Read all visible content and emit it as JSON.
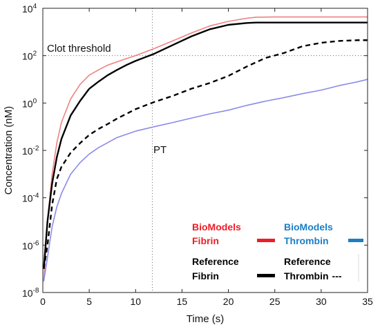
{
  "chart_data": {
    "type": "line",
    "xlabel": "Time (s)",
    "ylabel": "Concentration (nM)",
    "xlim": [
      0,
      35
    ],
    "ylim": [
      1e-08,
      10000.0
    ],
    "yscale": "log",
    "grid": false,
    "x_ticks": [
      "0",
      "5",
      "10",
      "15",
      "20",
      "25",
      "30",
      "35"
    ],
    "x_tick_values": [
      0,
      5,
      10,
      15,
      20,
      25,
      30,
      35
    ],
    "y_ticks": [
      {
        "base": "10",
        "exp": "4",
        "value": 10000
      },
      {
        "base": "10",
        "exp": "2",
        "value": 100
      },
      {
        "base": "10",
        "exp": "0",
        "value": 1
      },
      {
        "base": "10",
        "exp": "-2",
        "value": 0.01
      },
      {
        "base": "10",
        "exp": "-4",
        "value": 0.0001
      },
      {
        "base": "10",
        "exp": "-6",
        "value": 1e-06
      },
      {
        "base": "10",
        "exp": "-8",
        "value": 1e-08
      }
    ],
    "annotations": {
      "clot_threshold": {
        "text": "Clot threshold",
        "y": 100
      },
      "pt": {
        "text": "PT",
        "x": 11.8
      }
    },
    "legend": {
      "placement": "bottom-right",
      "entries": [
        {
          "line1": "BioModels",
          "line2": "Fibrin",
          "color": "#ee1c25",
          "style": "solid-red"
        },
        {
          "line1": "BioModels",
          "line2": "Thrombin",
          "color": "#1a7fc4",
          "style": "solid-blue"
        },
        {
          "line1": "Reference",
          "line2": "Fibrin",
          "color": "#000000",
          "style": "solid-black"
        },
        {
          "line1": "Reference",
          "line2": "Thrombin",
          "suffix": "---",
          "color": "#000000",
          "style": "dashed-black"
        }
      ]
    },
    "series": [
      {
        "key": "biomodels_fibrin",
        "color": "#f08080",
        "dash": "none",
        "x": [
          0.1,
          0.5,
          1,
          1.5,
          2,
          3,
          4,
          5,
          6,
          7,
          8,
          9,
          10,
          12,
          14,
          16,
          18,
          20,
          22,
          23,
          25,
          30,
          35
        ],
        "y": [
          3e-08,
          1e-05,
          0.001,
          0.02,
          0.15,
          1.5,
          6,
          15,
          25,
          40,
          55,
          75,
          100,
          200,
          420,
          900,
          1800,
          2800,
          3800,
          4200,
          4300,
          4300,
          4300
        ]
      },
      {
        "key": "reference_fibrin",
        "color": "#000000",
        "dash": "none",
        "x": [
          0.1,
          0.5,
          1,
          1.5,
          2,
          3,
          4,
          5,
          6,
          7,
          8,
          9,
          10,
          12,
          14,
          16,
          18,
          20,
          22,
          23,
          25,
          30,
          35
        ],
        "y": [
          1e-07,
          1e-05,
          0.0004,
          0.005,
          0.03,
          0.3,
          1.2,
          4,
          8,
          15,
          25,
          40,
          60,
          120,
          280,
          650,
          1300,
          2000,
          2400,
          2500,
          2500,
          2500,
          2500
        ]
      },
      {
        "key": "reference_thrombin",
        "color": "#000000",
        "dash": "7,5",
        "x": [
          0.1,
          0.5,
          1,
          1.5,
          2,
          3,
          4,
          5,
          6,
          7,
          8,
          10,
          12,
          14,
          16,
          18,
          20,
          22,
          24,
          26,
          28,
          30,
          32,
          34,
          35
        ],
        "y": [
          1e-07,
          1e-06,
          5e-05,
          0.0006,
          0.002,
          0.008,
          0.02,
          0.045,
          0.08,
          0.13,
          0.22,
          0.55,
          1.1,
          2,
          4,
          7,
          14,
          35,
          80,
          130,
          250,
          350,
          420,
          450,
          450
        ]
      },
      {
        "key": "biomodels_thrombin",
        "color": "#8a8aea",
        "dash": "none",
        "x": [
          0.1,
          0.5,
          1,
          1.5,
          2,
          3,
          4,
          5,
          6,
          8,
          10,
          12,
          14,
          16,
          18,
          20,
          22,
          24,
          26,
          28,
          30,
          32,
          34,
          35
        ],
        "y": [
          3e-08,
          3e-07,
          6e-06,
          4e-05,
          0.00015,
          0.001,
          0.003,
          0.007,
          0.013,
          0.035,
          0.065,
          0.1,
          0.15,
          0.23,
          0.35,
          0.5,
          0.8,
          1.2,
          1.7,
          2.5,
          3.5,
          5.5,
          8,
          10
        ]
      }
    ]
  }
}
